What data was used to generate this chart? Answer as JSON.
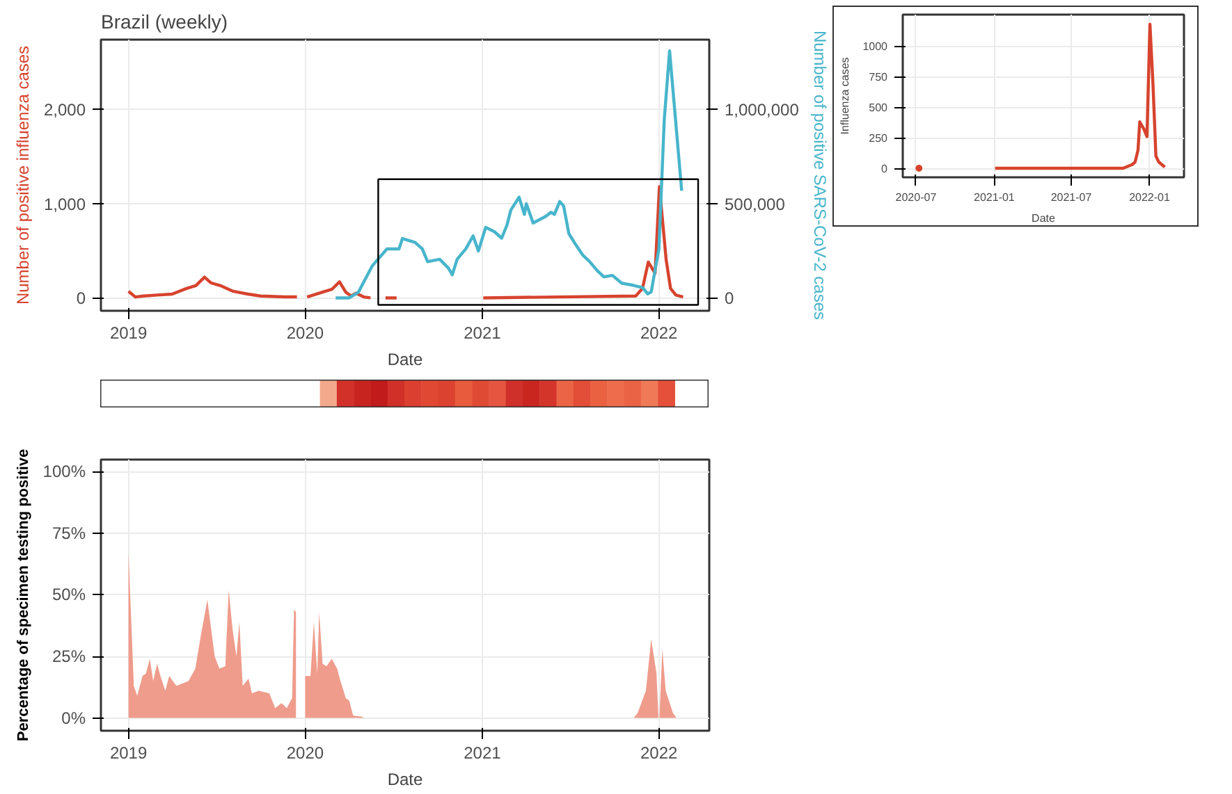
{
  "chart_data": [
    {
      "type": "line",
      "title": "Brazil (weekly)",
      "xlabel": "Date",
      "ylabel": "Number of positive influenza cases",
      "y2label": "Number of positive SARS-CoV-2 cases",
      "xlim": [
        "2018-11-05",
        "2022-04-15"
      ],
      "xticks": [
        "2019",
        "2020",
        "2021",
        "2022"
      ],
      "ylim": [
        -137,
        2740
      ],
      "yticks": [
        0,
        {
          "value": 1000,
          "label": "1,000"
        },
        {
          "value": 2000,
          "label": "2,000"
        }
      ],
      "y2lim": [
        -68500,
        1370000
      ],
      "y2ticks": [
        0,
        {
          "value": 500000,
          "label": "500,000"
        },
        {
          "value": 1000000,
          "label": "1,000,000"
        }
      ],
      "grid": true,
      "series": [
        {
          "color": "#d7432e",
          "x": [
            "2019-01-01",
            "2019-01-15",
            "2019-02-01",
            "2019-03-01",
            "2019-04-01",
            "2019-05-01",
            "2019-05-20",
            "2019-06-07",
            "2019-06-20",
            "2019-07-10",
            "2019-08-05",
            "2019-09-05",
            "2019-10-01",
            "2019-11-20",
            "2019-12-15",
            "2019-12-25",
            "2020-01-05",
            "2020-02-05",
            "2020-02-25",
            "2020-03-12",
            "2020-03-25",
            "2020-04-05",
            "2020-04-15",
            "2020-05-01",
            "2020-05-15",
            "2020-05-25",
            "2020-06-15",
            "2020-07-08",
            "2020-07-20",
            "2021-01-03",
            "2021-11-14",
            "2021-11-28",
            "2021-12-10",
            "2021-12-24",
            "2022-01-02",
            "2022-01-16",
            "2022-01-25",
            "2022-02-05",
            "2022-02-20"
          ],
          "values": [
            70,
            10,
            20,
            30,
            40,
            100,
            130,
            220,
            160,
            130,
            70,
            40,
            20,
            10,
            10,
            null,
            10,
            60,
            90,
            170,
            60,
            20,
            50,
            10,
            0,
            null,
            0,
            0,
            null,
            0,
            20,
            100,
            380,
            260,
            1180,
            400,
            100,
            30,
            10
          ]
        },
        {
          "color": "#47b5cb",
          "axis": "y2",
          "x": [
            "2020-03-04",
            "2020-04-01",
            "2020-04-20",
            "2020-05-19",
            "2020-06-18",
            "2020-07-13",
            "2020-07-20",
            "2020-08-15",
            "2020-08-30",
            "2020-09-10",
            "2020-10-05",
            "2020-10-23",
            "2020-10-31",
            "2020-11-10",
            "2020-11-28",
            "2020-12-13",
            "2020-12-24",
            "2021-01-08",
            "2021-01-26",
            "2021-02-10",
            "2021-02-21",
            "2021-03-01",
            "2021-03-18",
            "2021-03-29",
            "2021-04-02",
            "2021-04-16",
            "2021-05-12",
            "2021-05-23",
            "2021-05-30",
            "2021-06-10",
            "2021-06-18",
            "2021-06-29",
            "2021-07-13",
            "2021-07-28",
            "2021-08-11",
            "2021-08-26",
            "2021-09-09",
            "2021-09-27",
            "2021-10-16",
            "2021-11-10",
            "2021-11-28",
            "2021-12-09",
            "2021-12-16",
            "2022-01-01",
            "2022-01-12",
            "2022-01-23",
            "2022-02-17"
          ],
          "values": [
            0,
            0,
            30000,
            171000,
            260000,
            260000,
            315000,
            294000,
            260000,
            192000,
            205000,
            158000,
            123000,
            205000,
            260000,
            329000,
            249000,
            374000,
            351000,
            317000,
            386000,
            466000,
            534000,
            443000,
            500000,
            397000,
            432000,
            454000,
            443000,
            511000,
            488000,
            340000,
            283000,
            226000,
            192000,
            146000,
            112000,
            119000,
            78000,
            66000,
            55000,
            21000,
            32000,
            260000,
            945000,
            1310000,
            568000
          ]
        }
      ]
    },
    {
      "type": "line",
      "xlabel": "Date",
      "ylabel": "Influenza cases",
      "xlim": [
        "2020-05-31",
        "2022-03-23"
      ],
      "xticks": [
        "2020-07",
        "2021-01",
        "2021-07",
        "2022-01"
      ],
      "ylim": [
        -74,
        1259
      ],
      "yticks": [
        0,
        250,
        500,
        750,
        1000
      ],
      "grid": true,
      "series": [
        {
          "color": "#d7432e",
          "type": "scatter",
          "marker": "circle",
          "x": [
            "2020-07-08"
          ],
          "values": [
            0
          ]
        },
        {
          "color": "#d7432e",
          "x": [
            "2021-01-03",
            "2021-10-31",
            "2021-11-14",
            "2021-11-21",
            "2021-11-28",
            "2021-12-05",
            "2021-12-09",
            "2021-12-19",
            "2021-12-26",
            "2022-01-02",
            "2022-01-09",
            "2022-01-16",
            "2022-01-23",
            "2022-01-30",
            "2022-02-06"
          ],
          "values": [
            0,
            0,
            20,
            30,
            50,
            150,
            380,
            320,
            260,
            1180,
            700,
            100,
            50,
            30,
            10
          ]
        }
      ]
    },
    {
      "type": "area",
      "xlabel": "Date",
      "ylabel": "Percentage of specimen testing positive",
      "xlim": [
        "2018-11-05",
        "2022-04-15"
      ],
      "xticks": [
        "2019",
        "2020",
        "2021",
        "2022"
      ],
      "ylim": [
        -5.2,
        104.9
      ],
      "yticks": [
        {
          "value": 0,
          "label": "0%"
        },
        {
          "value": 25,
          "label": "25%"
        },
        {
          "value": 50,
          "label": "50%"
        },
        {
          "value": 75,
          "label": "75%"
        },
        {
          "value": 100,
          "label": "100%"
        }
      ],
      "grid": true,
      "series": [
        {
          "color": "#ef9c8c",
          "x": [
            "2019-01-01",
            "2019-01-12",
            "2019-01-19",
            "2019-01-30",
            "2019-02-06",
            "2019-02-14",
            "2019-02-21",
            "2019-03-01",
            "2019-03-08",
            "2019-03-18",
            "2019-03-26",
            "2019-04-10",
            "2019-05-05",
            "2019-05-19",
            "2019-05-30",
            "2019-06-13",
            "2019-06-28",
            "2019-07-08",
            "2019-07-20",
            "2019-07-27",
            "2019-08-04",
            "2019-08-12",
            "2019-08-18",
            "2019-08-25",
            "2019-09-06",
            "2019-09-13",
            "2019-09-27",
            "2019-10-19",
            "2019-10-31",
            "2019-11-13",
            "2019-11-24",
            "2019-12-05",
            "2019-12-09",
            "2019-12-13",
            "2019-12-20",
            "2020-01-01",
            "2020-01-12",
            "2020-01-19",
            "2020-01-26",
            "2020-01-30",
            "2020-02-06",
            "2020-02-14",
            "2020-02-25",
            "2020-03-07",
            "2020-03-14",
            "2020-03-25",
            "2020-04-01",
            "2020-04-09",
            "2020-04-27",
            "2020-05-01",
            "2020-06-01",
            "2021-11-10",
            "2021-11-18",
            "2021-12-05",
            "2021-12-16",
            "2021-12-27",
            "2021-12-31",
            "2022-01-01",
            "2022-01-02",
            "2022-01-08",
            "2022-01-15",
            "2022-01-30",
            "2022-02-06"
          ],
          "values": [
            67,
            13,
            9,
            17,
            18,
            24,
            15,
            22,
            17,
            11,
            17,
            13,
            15,
            20,
            33,
            48,
            25,
            20,
            21,
            52,
            36,
            25,
            39,
            13,
            16,
            10,
            11,
            10,
            4,
            6,
            4,
            8,
            44,
            43,
            null,
            17,
            17,
            39,
            18,
            43,
            22,
            21,
            24,
            20,
            15,
            8,
            7,
            1,
            0.5,
            0,
            null,
            0,
            2,
            11,
            32,
            18,
            0,
            null,
            0,
            28,
            11,
            2,
            0
          ]
        }
      ]
    }
  ]
}
